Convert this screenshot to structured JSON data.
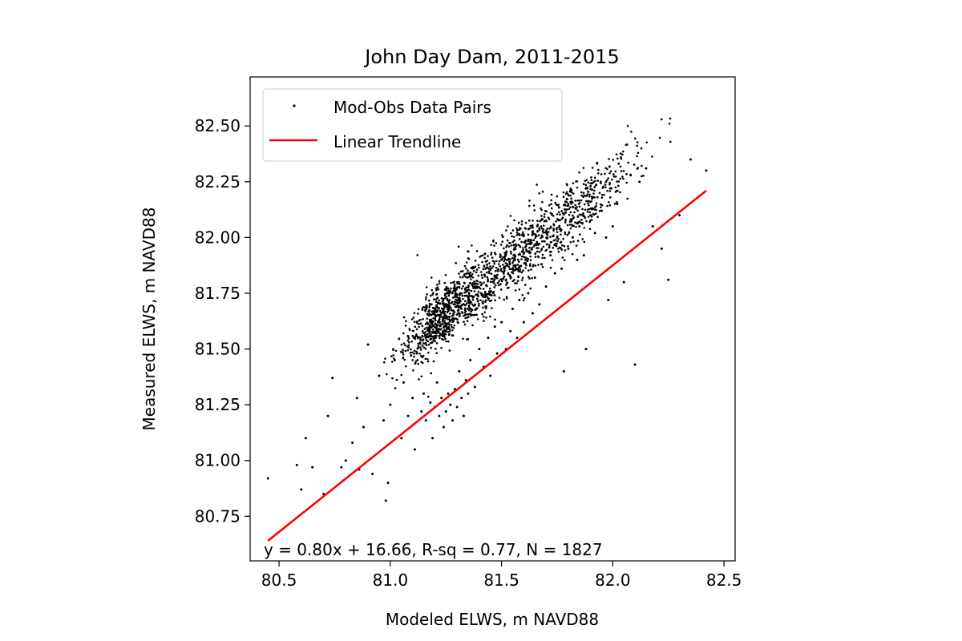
{
  "chart_data": {
    "type": "scatter",
    "title": "John Day Dam, 2011-2015",
    "xlabel": "Modeled ELWS, m NAVD88",
    "ylabel": "Measured ELWS, m NAVD88",
    "xlim": [
      80.37,
      82.55
    ],
    "ylim": [
      80.55,
      82.72
    ],
    "xticks": [
      80.5,
      81.0,
      81.5,
      82.0,
      82.5
    ],
    "xtick_labels": [
      "80.5",
      "81.0",
      "81.5",
      "82.0",
      "82.5"
    ],
    "yticks": [
      80.75,
      81.0,
      81.25,
      81.5,
      81.75,
      82.0,
      82.25,
      82.5
    ],
    "ytick_labels": [
      "80.75",
      "81.00",
      "81.25",
      "81.50",
      "81.75",
      "82.00",
      "82.25",
      "82.50"
    ],
    "grid": false,
    "legend": {
      "placement": "upper-left",
      "entries": [
        {
          "label": "Mod-Obs Data Pairs",
          "marker": "point",
          "color": "#000000"
        },
        {
          "label": "Linear Trendline",
          "marker": "line",
          "color": "#ff0000"
        }
      ]
    },
    "annotation": "y = 0.80x + 16.66, R-sq = 0.77, N = 1827",
    "series": [
      {
        "type": "scatter",
        "color": "#000000",
        "note_points": "sample of visible points",
        "points": [
          [
            80.45,
            80.92
          ],
          [
            80.58,
            80.98
          ],
          [
            80.6,
            80.87
          ],
          [
            80.62,
            81.1
          ],
          [
            80.65,
            80.97
          ],
          [
            80.7,
            80.85
          ],
          [
            80.74,
            81.37
          ],
          [
            80.72,
            81.2
          ],
          [
            80.78,
            80.97
          ],
          [
            80.8,
            81.0
          ],
          [
            80.83,
            81.08
          ],
          [
            80.85,
            81.28
          ],
          [
            80.86,
            80.96
          ],
          [
            80.88,
            81.15
          ],
          [
            80.9,
            81.52
          ],
          [
            80.92,
            80.94
          ],
          [
            80.95,
            81.38
          ],
          [
            80.97,
            81.18
          ],
          [
            80.98,
            80.82
          ],
          [
            80.99,
            80.9
          ],
          [
            81.0,
            81.25
          ],
          [
            81.02,
            81.45
          ],
          [
            81.05,
            81.1
          ],
          [
            81.06,
            81.35
          ],
          [
            81.08,
            81.2
          ],
          [
            81.1,
            81.28
          ],
          [
            81.11,
            81.05
          ],
          [
            81.12,
            81.48
          ],
          [
            81.14,
            81.22
          ],
          [
            81.15,
            81.3
          ],
          [
            81.16,
            81.18
          ],
          [
            81.18,
            81.26
          ],
          [
            81.19,
            81.1
          ],
          [
            81.2,
            81.24
          ],
          [
            81.21,
            81.35
          ],
          [
            81.22,
            81.2
          ],
          [
            81.23,
            81.28
          ],
          [
            81.24,
            81.15
          ],
          [
            81.25,
            81.22
          ],
          [
            81.25,
            81.77
          ],
          [
            81.26,
            81.3
          ],
          [
            81.27,
            81.25
          ],
          [
            81.28,
            81.18
          ],
          [
            81.29,
            81.32
          ],
          [
            81.3,
            81.24
          ],
          [
            81.31,
            81.4
          ],
          [
            81.32,
            81.28
          ],
          [
            81.33,
            81.2
          ],
          [
            81.34,
            81.36
          ],
          [
            81.35,
            81.3
          ],
          [
            81.36,
            81.45
          ],
          [
            81.38,
            81.33
          ],
          [
            81.4,
            81.5
          ],
          [
            81.42,
            81.42
          ],
          [
            81.44,
            81.55
          ],
          [
            81.45,
            81.38
          ],
          [
            81.47,
            81.6
          ],
          [
            81.48,
            81.48
          ],
          [
            81.5,
            81.62
          ],
          [
            81.5,
            81.9
          ],
          [
            81.52,
            81.5
          ],
          [
            81.54,
            81.58
          ],
          [
            81.55,
            81.68
          ],
          [
            81.57,
            81.55
          ],
          [
            81.58,
            81.72
          ],
          [
            81.6,
            81.62
          ],
          [
            81.62,
            81.75
          ],
          [
            81.64,
            81.66
          ],
          [
            81.65,
            81.82
          ],
          [
            81.67,
            81.7
          ],
          [
            81.68,
            81.88
          ],
          [
            81.7,
            81.78
          ],
          [
            81.72,
            81.92
          ],
          [
            81.74,
            81.84
          ],
          [
            81.75,
            82.0
          ],
          [
            81.77,
            81.86
          ],
          [
            81.78,
            81.4
          ],
          [
            81.8,
            81.95
          ],
          [
            81.82,
            82.0
          ],
          [
            81.84,
            81.9
          ],
          [
            81.85,
            82.05
          ],
          [
            81.87,
            81.92
          ],
          [
            81.88,
            81.5
          ],
          [
            81.9,
            82.1
          ],
          [
            81.9,
            82.23
          ],
          [
            81.92,
            82.02
          ],
          [
            81.95,
            82.12
          ],
          [
            81.97,
            82.0
          ],
          [
            81.98,
            81.72
          ],
          [
            82.0,
            82.05
          ],
          [
            82.02,
            82.15
          ],
          [
            82.05,
            81.8
          ],
          [
            82.08,
            82.28
          ],
          [
            82.1,
            81.43
          ],
          [
            82.12,
            82.25
          ],
          [
            82.15,
            82.31
          ],
          [
            82.18,
            82.05
          ],
          [
            82.22,
            81.95
          ],
          [
            82.25,
            81.81
          ],
          [
            82.3,
            82.1
          ],
          [
            82.35,
            82.35
          ],
          [
            82.42,
            82.3
          ]
        ]
      },
      {
        "type": "line",
        "color": "#ff0000",
        "points": [
          [
            80.45,
            80.64
          ],
          [
            82.42,
            82.21
          ]
        ]
      }
    ]
  }
}
